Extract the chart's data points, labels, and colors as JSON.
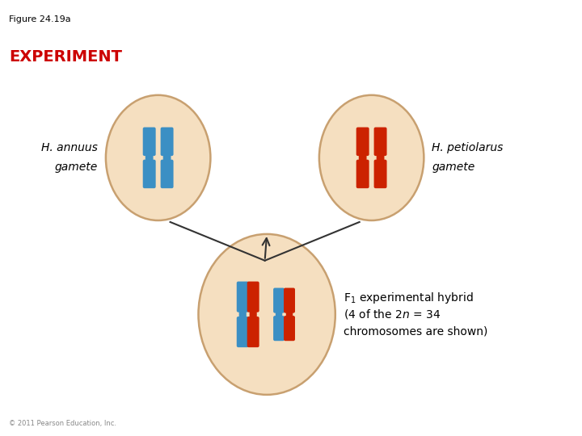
{
  "figure_label": "Figure 24.19a",
  "experiment_label": "EXPERIMENT",
  "experiment_color": "#cc0000",
  "cell_fill": "#f5dfc0",
  "cell_edge": "#c8a070",
  "blue_color": "#3b8fc4",
  "red_color": "#cc2200",
  "copyright": "© 2011 Pearson Education, Inc.",
  "line_color": "#333333",
  "bg_color": "#ffffff",
  "annuus_label_line1": "H. annuus",
  "annuus_label_line2": "gamete",
  "petiolarus_label_line1": "H. petiolarus",
  "petiolarus_label_line2": "gamete"
}
